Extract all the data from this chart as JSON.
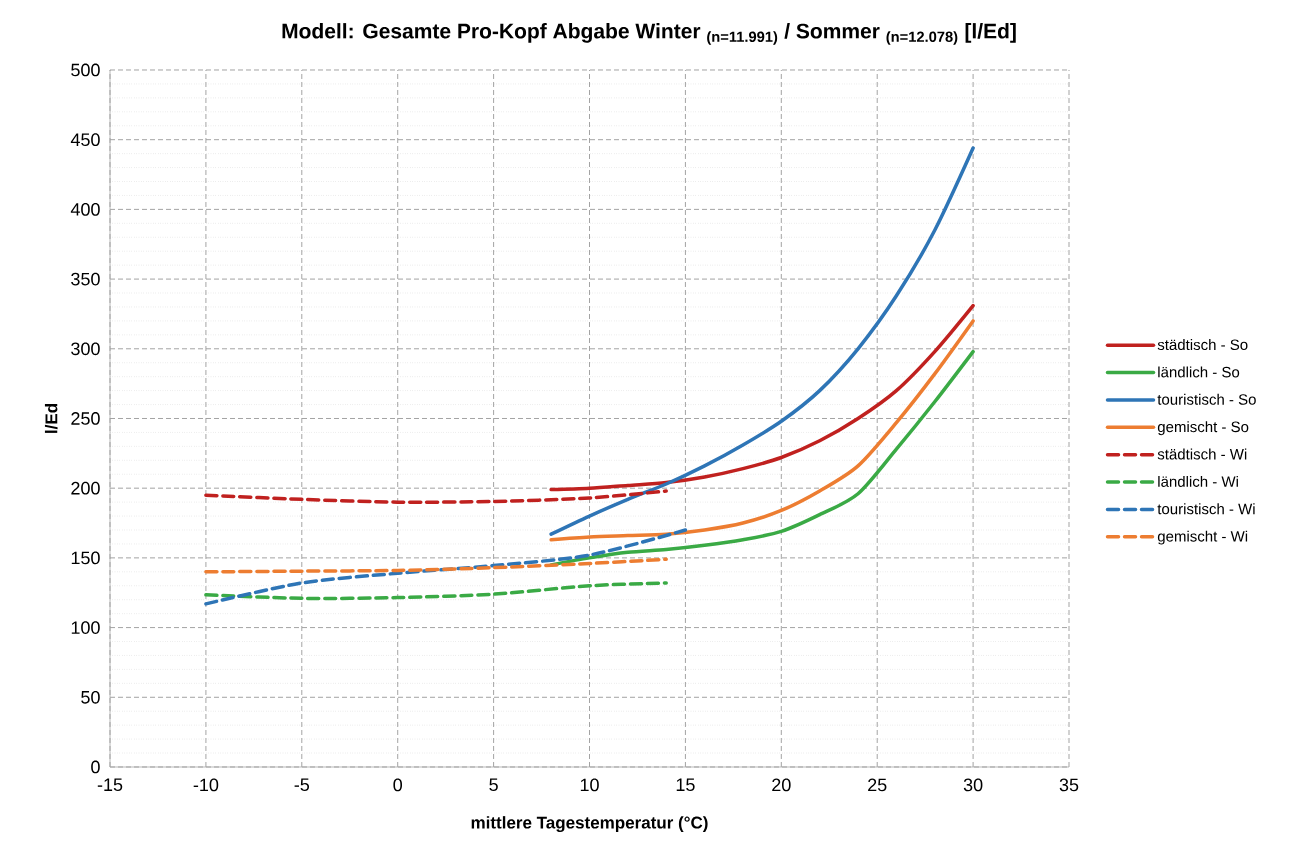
{
  "chart_data": {
    "type": "line",
    "title": "Modell: Gesamte Pro-Kopf Abgabe Winter $_{(n=11.991)}$ / Sommer $_{(n=12.078)}$ [l/Ed]",
    "xlabel": "mittlere Tagestemperatur (°C)",
    "ylabel": "l/Ed",
    "xlim": [
      -15,
      35
    ],
    "xticks": [
      -15,
      -10,
      -5,
      0,
      5,
      10,
      15,
      20,
      25,
      30,
      35
    ],
    "ylim": [
      0,
      500
    ],
    "yticks": [
      0,
      50,
      100,
      150,
      200,
      250,
      300,
      350,
      400,
      450,
      500
    ],
    "grid": true,
    "legend": "right",
    "marker": "none",
    "series": [
      {
        "name": "städtisch - So",
        "color": "#c0211f",
        "line_style": "solid",
        "x": [
          8,
          10,
          12,
          14,
          16,
          18,
          20,
          22,
          24,
          26,
          28,
          30
        ],
        "values": [
          199,
          200,
          202,
          204,
          208,
          214,
          222,
          234,
          250,
          270,
          298,
          331
        ]
      },
      {
        "name": "ländlich - So",
        "color": "#3aaa45",
        "line_style": "solid",
        "x": [
          8,
          10,
          12,
          14,
          16,
          18,
          20,
          22,
          24,
          26,
          28,
          30
        ],
        "values": [
          145,
          150,
          154,
          156,
          159,
          163,
          169,
          181,
          196,
          228,
          262,
          298
        ]
      },
      {
        "name": "touristisch - So",
        "color": "#2e75b6",
        "line_style": "solid",
        "x": [
          8,
          10,
          12,
          14,
          16,
          18,
          20,
          22,
          24,
          26,
          28,
          30
        ],
        "values": [
          167,
          180,
          192,
          203,
          216,
          231,
          248,
          270,
          300,
          338,
          385,
          444
        ]
      },
      {
        "name": "gemischt - So",
        "color": "#ed7d31",
        "line_style": "solid",
        "x": [
          8,
          10,
          12,
          14,
          16,
          18,
          20,
          22,
          24,
          26,
          28,
          30
        ],
        "values": [
          163,
          165,
          166,
          167,
          170,
          175,
          184,
          198,
          216,
          247,
          282,
          320
        ]
      },
      {
        "name": "städtisch - Wi",
        "color": "#c0211f",
        "line_style": "dashed",
        "x": [
          -10,
          -5,
          0,
          5,
          10,
          14
        ],
        "values": [
          195,
          192,
          190,
          190.5,
          193,
          198
        ]
      },
      {
        "name": "ländlich - Wi",
        "color": "#3aaa45",
        "line_style": "dashed",
        "x": [
          -10,
          -5,
          0,
          5,
          10,
          14
        ],
        "values": [
          123.5,
          121,
          121.5,
          124,
          130,
          132
        ]
      },
      {
        "name": "touristisch - Wi",
        "color": "#2e75b6",
        "line_style": "dashed",
        "x": [
          -10,
          -5,
          0,
          5,
          10,
          15
        ],
        "values": [
          117,
          132,
          139,
          144.5,
          152,
          170
        ]
      },
      {
        "name": "gemischt - Wi",
        "color": "#ed7d31",
        "line_style": "dashed",
        "x": [
          -10,
          -5,
          0,
          5,
          10,
          14
        ],
        "values": [
          140,
          140.5,
          141,
          143,
          146,
          149
        ]
      }
    ]
  }
}
